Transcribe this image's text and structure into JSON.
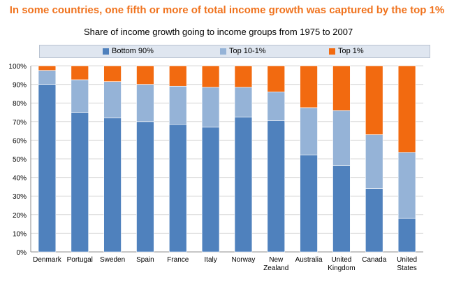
{
  "header": {
    "headline": "In some countries, one fifth or more of total income growth was captured by the top 1%",
    "subtitle": "Share of income growth going to income groups from 1975 to 2007"
  },
  "legend": [
    {
      "label": "Bottom 90%",
      "color": "#4f81bd"
    },
    {
      "label": "Top 10-1%",
      "color": "#95b3d7"
    },
    {
      "label": "Top 1%",
      "color": "#f26a10"
    }
  ],
  "chart_data": {
    "type": "bar",
    "stacked": true,
    "categories": [
      "Denmark",
      "Portugal",
      "Sweden",
      "Spain",
      "France",
      "Italy",
      "Norway",
      "New Zealand",
      "Australia",
      "United Kingdom",
      "Canada",
      "United States"
    ],
    "category_lines": [
      [
        "Denmark"
      ],
      [
        "Portugal"
      ],
      [
        "Sweden"
      ],
      [
        "Spain"
      ],
      [
        "France"
      ],
      [
        "Italy"
      ],
      [
        "Norway"
      ],
      [
        "New",
        "Zealand"
      ],
      [
        "Australia"
      ],
      [
        "United",
        "Kingdom"
      ],
      [
        "Canada"
      ],
      [
        "United",
        "States"
      ]
    ],
    "series": [
      {
        "name": "Bottom 90%",
        "values": [
          90,
          75,
          72,
          70,
          68.5,
          67,
          72.5,
          70.5,
          52,
          46.5,
          34,
          18
        ]
      },
      {
        "name": "Top 10-1%",
        "values": [
          7.5,
          17.5,
          19.5,
          20,
          20.5,
          21.5,
          16,
          15.5,
          25.5,
          29.5,
          29,
          35.5
        ]
      },
      {
        "name": "Top 1%",
        "values": [
          2.5,
          7.5,
          8.5,
          10,
          11,
          11.5,
          11.5,
          14,
          22.5,
          24,
          37,
          46.5
        ]
      }
    ],
    "ylim": [
      0,
      100
    ],
    "yticks": [
      "0%",
      "10%",
      "20%",
      "30%",
      "40%",
      "50%",
      "60%",
      "70%",
      "80%",
      "90%",
      "100%"
    ],
    "grid": true,
    "legend_position": "top"
  }
}
